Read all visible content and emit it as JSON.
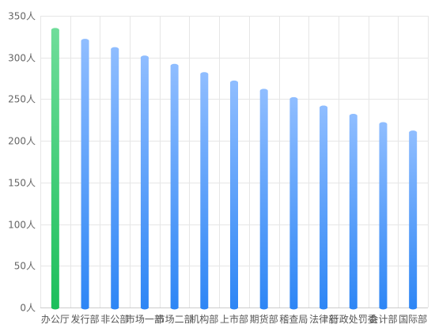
{
  "chart_data": {
    "type": "bar",
    "title": "",
    "xlabel": "",
    "ylabel": "",
    "unit": "人",
    "ylim": [
      0,
      350
    ],
    "yticks": [
      0,
      50,
      100,
      150,
      200,
      250,
      300,
      350
    ],
    "ytick_labels": [
      "0人",
      "50人",
      "100人",
      "150人",
      "200人",
      "250人",
      "300人",
      "350人"
    ],
    "grid": true,
    "categories": [
      "办公厅",
      "发行部",
      "非公部",
      "市场一部",
      "市场二部",
      "机构部",
      "上市部",
      "期货部",
      "稽查局",
      "法律部",
      "行政处罚委",
      "会计部",
      "国际部"
    ],
    "values": [
      333,
      320,
      310,
      300,
      290,
      280,
      270,
      260,
      250,
      240,
      230,
      220,
      210
    ],
    "highlight_index": 0,
    "colors": {
      "highlight_top": "#6fdd9a",
      "highlight_bottom": "#1dbf5c",
      "bar_top": "#8fbdff",
      "bar_bottom": "#2e86f5",
      "grid": "#e6e6e6",
      "axis": "#cccccc"
    }
  }
}
